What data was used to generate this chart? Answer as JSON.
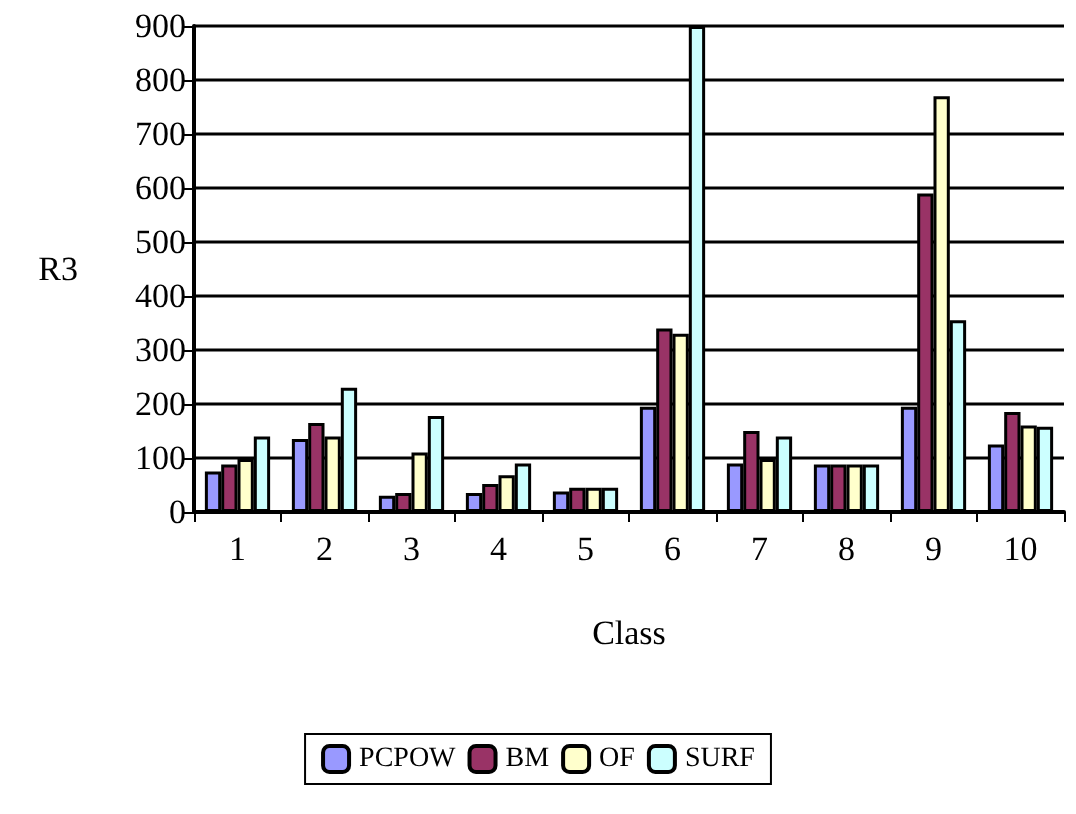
{
  "chart_data": {
    "type": "bar",
    "xlabel": "Class",
    "ylabel": "R3",
    "categories": [
      "1",
      "2",
      "3",
      "4",
      "5",
      "6",
      "7",
      "8",
      "9",
      "10"
    ],
    "series": [
      {
        "name": "PCPOW",
        "color": "#9999ff",
        "values": [
          75,
          135,
          30,
          35,
          38,
          195,
          90,
          88,
          195,
          125
        ]
      },
      {
        "name": "BM",
        "color": "#993366",
        "values": [
          88,
          165,
          35,
          52,
          45,
          340,
          150,
          88,
          590,
          185
        ]
      },
      {
        "name": "OF",
        "color": "#ffffcc",
        "values": [
          98,
          140,
          110,
          68,
          45,
          330,
          98,
          88,
          770,
          160
        ]
      },
      {
        "name": "SURF",
        "color": "#ccffff",
        "values": [
          140,
          230,
          178,
          90,
          45,
          900,
          140,
          88,
          355,
          158
        ]
      }
    ],
    "ylim": [
      0,
      900
    ],
    "yticks": [
      0,
      100,
      200,
      300,
      400,
      500,
      600,
      700,
      800,
      900
    ],
    "grid": "y",
    "legend": "bottom"
  }
}
